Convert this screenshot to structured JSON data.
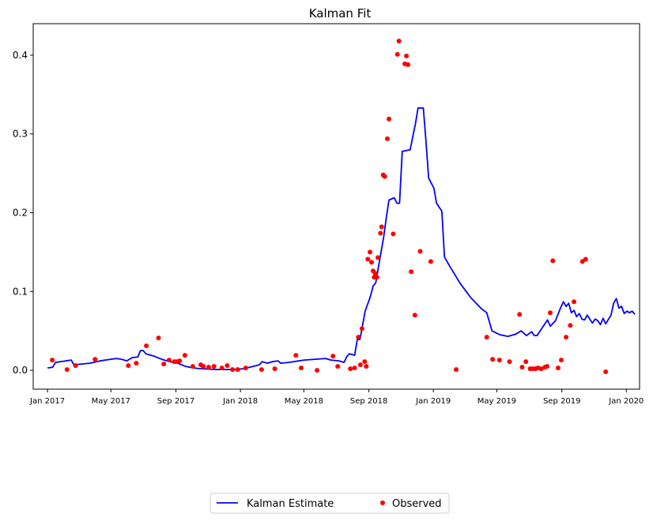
{
  "chart_data": {
    "type": "line",
    "title": "Kalman Fit",
    "xlabel": "",
    "ylabel": "",
    "x_range": [
      "2016-12-05",
      "2020-01-26"
    ],
    "ylim": [
      -0.024,
      0.44
    ],
    "grid": false,
    "legend": {
      "placement": "bottom-center",
      "columns": 2
    },
    "colors": {
      "estimate": "#0000ff",
      "observed": "#ff0000",
      "axis": "#000000"
    },
    "y_ticks": [
      {
        "value": 0.0,
        "label": "0.0"
      },
      {
        "value": 0.1,
        "label": "0.1"
      },
      {
        "value": 0.2,
        "label": "0.2"
      },
      {
        "value": 0.3,
        "label": "0.3"
      },
      {
        "value": 0.4,
        "label": "0.4"
      }
    ],
    "x_ticks": [
      {
        "value": "2017-01-01",
        "label": "Jan 2017"
      },
      {
        "value": "2017-05-01",
        "label": "May 2017"
      },
      {
        "value": "2017-09-01",
        "label": "Sep 2017"
      },
      {
        "value": "2018-01-01",
        "label": "Jan 2018"
      },
      {
        "value": "2018-05-01",
        "label": "May 2018"
      },
      {
        "value": "2018-09-01",
        "label": "Sep 2018"
      },
      {
        "value": "2019-01-01",
        "label": "Jan 2019"
      },
      {
        "value": "2019-05-01",
        "label": "May 2019"
      },
      {
        "value": "2019-09-01",
        "label": "Sep 2019"
      },
      {
        "value": "2020-01-01",
        "label": "Jan 2020"
      }
    ],
    "series": [
      {
        "name": "Kalman Estimate",
        "kind": "line",
        "color": "#0000ff",
        "points": [
          [
            "2017-01-01",
            0.003
          ],
          [
            "2017-01-11",
            0.004
          ],
          [
            "2017-01-16",
            0.01
          ],
          [
            "2017-02-15",
            0.013
          ],
          [
            "2017-02-20",
            0.007
          ],
          [
            "2017-03-07",
            0.008
          ],
          [
            "2017-03-22",
            0.009
          ],
          [
            "2017-04-11",
            0.012
          ],
          [
            "2017-05-11",
            0.015
          ],
          [
            "2017-05-21",
            0.014
          ],
          [
            "2017-05-31",
            0.012
          ],
          [
            "2017-06-10",
            0.016
          ],
          [
            "2017-06-21",
            0.017
          ],
          [
            "2017-06-26",
            0.025
          ],
          [
            "2017-07-01",
            0.025
          ],
          [
            "2017-07-06",
            0.021
          ],
          [
            "2017-07-21",
            0.018
          ],
          [
            "2017-08-05",
            0.014
          ],
          [
            "2017-08-20",
            0.011
          ],
          [
            "2017-09-04",
            0.009
          ],
          [
            "2017-09-19",
            0.005
          ],
          [
            "2017-10-04",
            0.003
          ],
          [
            "2017-10-19",
            0.002
          ],
          [
            "2017-11-18",
            0.001
          ],
          [
            "2017-12-18",
            0.001
          ],
          [
            "2018-01-07",
            0.002
          ],
          [
            "2018-02-06",
            0.007
          ],
          [
            "2018-02-11",
            0.011
          ],
          [
            "2018-02-21",
            0.009
          ],
          [
            "2018-03-03",
            0.011
          ],
          [
            "2018-03-13",
            0.012
          ],
          [
            "2018-03-18",
            0.009
          ],
          [
            "2018-04-02",
            0.01
          ],
          [
            "2018-05-02",
            0.013
          ],
          [
            "2018-05-22",
            0.014
          ],
          [
            "2018-06-11",
            0.015
          ],
          [
            "2018-06-21",
            0.013
          ],
          [
            "2018-07-06",
            0.012
          ],
          [
            "2018-07-11",
            0.011
          ],
          [
            "2018-07-16",
            0.01
          ],
          [
            "2018-07-21",
            0.017
          ],
          [
            "2018-07-26",
            0.021
          ],
          [
            "2018-08-05",
            0.019
          ],
          [
            "2018-08-10",
            0.039
          ],
          [
            "2018-08-15",
            0.039
          ],
          [
            "2018-08-20",
            0.057
          ],
          [
            "2018-08-25",
            0.075
          ],
          [
            "2018-09-04",
            0.094
          ],
          [
            "2018-09-09",
            0.107
          ],
          [
            "2018-09-14",
            0.111
          ],
          [
            "2018-09-19",
            0.131
          ],
          [
            "2018-09-29",
            0.169
          ],
          [
            "2018-10-04",
            0.194
          ],
          [
            "2018-10-09",
            0.216
          ],
          [
            "2018-10-19",
            0.219
          ],
          [
            "2018-10-24",
            0.212
          ],
          [
            "2018-10-29",
            0.212
          ],
          [
            "2018-11-03",
            0.278
          ],
          [
            "2018-11-18",
            0.28
          ],
          [
            "2018-11-28",
            0.313
          ],
          [
            "2018-12-03",
            0.333
          ],
          [
            "2018-12-13",
            0.333
          ],
          [
            "2018-12-18",
            0.291
          ],
          [
            "2018-12-23",
            0.244
          ],
          [
            "2019-01-02",
            0.231
          ],
          [
            "2019-01-07",
            0.212
          ],
          [
            "2019-01-17",
            0.202
          ],
          [
            "2019-01-22",
            0.144
          ],
          [
            "2019-02-01",
            0.132
          ],
          [
            "2019-02-21",
            0.11
          ],
          [
            "2019-03-13",
            0.092
          ],
          [
            "2019-04-02",
            0.078
          ],
          [
            "2019-04-12",
            0.073
          ],
          [
            "2019-04-22",
            0.05
          ],
          [
            "2019-05-07",
            0.045
          ],
          [
            "2019-05-22",
            0.043
          ],
          [
            "2019-06-06",
            0.046
          ],
          [
            "2019-06-16",
            0.05
          ],
          [
            "2019-06-26",
            0.044
          ],
          [
            "2019-07-06",
            0.049
          ],
          [
            "2019-07-11",
            0.044
          ],
          [
            "2019-07-16",
            0.044
          ],
          [
            "2019-08-05",
            0.064
          ],
          [
            "2019-08-10",
            0.056
          ],
          [
            "2019-08-20",
            0.063
          ],
          [
            "2019-08-30",
            0.08
          ],
          [
            "2019-09-04",
            0.087
          ],
          [
            "2019-09-09",
            0.081
          ],
          [
            "2019-09-14",
            0.085
          ],
          [
            "2019-09-19",
            0.073
          ],
          [
            "2019-09-24",
            0.076
          ],
          [
            "2019-09-29",
            0.068
          ],
          [
            "2019-10-04",
            0.072
          ],
          [
            "2019-10-09",
            0.065
          ],
          [
            "2019-10-14",
            0.064
          ],
          [
            "2019-10-19",
            0.07
          ],
          [
            "2019-10-24",
            0.065
          ],
          [
            "2019-10-29",
            0.06
          ],
          [
            "2019-11-03",
            0.065
          ],
          [
            "2019-11-08",
            0.063
          ],
          [
            "2019-11-13",
            0.058
          ],
          [
            "2019-11-18",
            0.066
          ],
          [
            "2019-11-23",
            0.059
          ],
          [
            "2019-12-03",
            0.07
          ],
          [
            "2019-12-08",
            0.085
          ],
          [
            "2019-12-13",
            0.091
          ],
          [
            "2019-12-18",
            0.079
          ],
          [
            "2019-12-23",
            0.081
          ],
          [
            "2019-12-28",
            0.072
          ],
          [
            "2020-01-02",
            0.075
          ],
          [
            "2020-01-07",
            0.073
          ],
          [
            "2020-01-12",
            0.075
          ],
          [
            "2020-01-17",
            0.071
          ]
        ]
      },
      {
        "name": "Observed",
        "kind": "scatter",
        "color": "#ff0000",
        "points": [
          [
            "2017-01-10",
            0.013
          ],
          [
            "2017-02-07",
            0.001
          ],
          [
            "2017-02-23",
            0.006
          ],
          [
            "2017-04-01",
            0.014
          ],
          [
            "2017-06-03",
            0.006
          ],
          [
            "2017-06-18",
            0.009
          ],
          [
            "2017-07-07",
            0.031
          ],
          [
            "2017-07-30",
            0.041
          ],
          [
            "2017-08-09",
            0.008
          ],
          [
            "2017-08-19",
            0.013
          ],
          [
            "2017-08-29",
            0.011
          ],
          [
            "2017-09-03",
            0.011
          ],
          [
            "2017-09-08",
            0.012
          ],
          [
            "2017-09-18",
            0.019
          ],
          [
            "2017-10-03",
            0.005
          ],
          [
            "2017-10-18",
            0.007
          ],
          [
            "2017-10-23",
            0.005
          ],
          [
            "2017-11-02",
            0.004
          ],
          [
            "2017-11-12",
            0.005
          ],
          [
            "2017-11-27",
            0.003
          ],
          [
            "2017-12-07",
            0.006
          ],
          [
            "2017-12-17",
            0.001
          ],
          [
            "2017-12-27",
            0.001
          ],
          [
            "2018-01-11",
            0.003
          ],
          [
            "2018-02-10",
            0.001
          ],
          [
            "2018-03-07",
            0.002
          ],
          [
            "2018-04-16",
            0.019
          ],
          [
            "2018-04-26",
            0.003
          ],
          [
            "2018-05-26",
            0.0
          ],
          [
            "2018-06-25",
            0.018
          ],
          [
            "2018-07-04",
            0.005
          ],
          [
            "2018-07-28",
            0.002
          ],
          [
            "2018-08-05",
            0.003
          ],
          [
            "2018-08-12",
            0.042
          ],
          [
            "2018-08-16",
            0.007
          ],
          [
            "2018-08-19",
            0.053
          ],
          [
            "2018-08-24",
            0.011
          ],
          [
            "2018-08-27",
            0.005
          ],
          [
            "2018-08-30",
            0.141
          ],
          [
            "2018-09-03",
            0.15
          ],
          [
            "2018-09-06",
            0.137
          ],
          [
            "2018-09-09",
            0.126
          ],
          [
            "2018-09-11",
            0.118
          ],
          [
            "2018-09-13",
            0.123
          ],
          [
            "2018-09-16",
            0.118
          ],
          [
            "2018-09-18",
            0.143
          ],
          [
            "2018-09-23",
            0.174
          ],
          [
            "2018-09-25",
            0.182
          ],
          [
            "2018-09-28",
            0.248
          ],
          [
            "2018-10-01",
            0.246
          ],
          [
            "2018-10-06",
            0.294
          ],
          [
            "2018-10-09",
            0.319
          ],
          [
            "2018-10-17",
            0.173
          ],
          [
            "2018-10-25",
            0.401
          ],
          [
            "2018-10-28",
            0.418
          ],
          [
            "2018-11-08",
            0.389
          ],
          [
            "2018-11-11",
            0.399
          ],
          [
            "2018-11-14",
            0.388
          ],
          [
            "2018-11-20",
            0.125
          ],
          [
            "2018-11-27",
            0.07
          ],
          [
            "2018-12-07",
            0.151
          ],
          [
            "2018-12-27",
            0.138
          ],
          [
            "2019-02-13",
            0.001
          ],
          [
            "2019-04-12",
            0.042
          ],
          [
            "2019-04-23",
            0.014
          ],
          [
            "2019-05-06",
            0.013
          ],
          [
            "2019-05-25",
            0.011
          ],
          [
            "2019-06-13",
            0.071
          ],
          [
            "2019-06-18",
            0.004
          ],
          [
            "2019-06-25",
            0.011
          ],
          [
            "2019-07-03",
            0.002
          ],
          [
            "2019-07-08",
            0.002
          ],
          [
            "2019-07-13",
            0.002
          ],
          [
            "2019-07-18",
            0.003
          ],
          [
            "2019-07-24",
            0.002
          ],
          [
            "2019-07-31",
            0.004
          ],
          [
            "2019-08-04",
            0.005
          ],
          [
            "2019-08-10",
            0.073
          ],
          [
            "2019-08-15",
            0.139
          ],
          [
            "2019-08-25",
            0.003
          ],
          [
            "2019-08-31",
            0.013
          ],
          [
            "2019-09-09",
            0.042
          ],
          [
            "2019-09-17",
            0.057
          ],
          [
            "2019-09-24",
            0.087
          ],
          [
            "2019-10-10",
            0.138
          ],
          [
            "2019-10-16",
            0.141
          ],
          [
            "2019-11-23",
            -0.002
          ]
        ]
      }
    ]
  }
}
